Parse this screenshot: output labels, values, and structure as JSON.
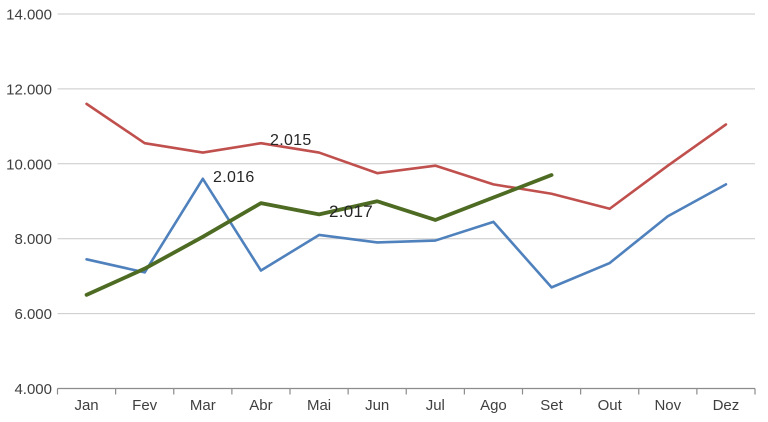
{
  "chart_data": {
    "type": "line",
    "title": "",
    "xlabel": "",
    "ylabel": "",
    "categories": [
      "Jan",
      "Fev",
      "Mar",
      "Abr",
      "Mai",
      "Jun",
      "Jul",
      "Ago",
      "Set",
      "Out",
      "Nov",
      "Dez"
    ],
    "series": [
      {
        "name": "2.015",
        "color": "#C0504D",
        "stroke_width": 2.6,
        "values": [
          11600,
          10550,
          10300,
          10550,
          10300,
          9750,
          9950,
          9450,
          9200,
          8800,
          9950,
          11050
        ]
      },
      {
        "name": "2.016",
        "color": "#4F81BD",
        "stroke_width": 2.6,
        "values": [
          7450,
          7100,
          9600,
          7150,
          8100,
          7900,
          7950,
          8450,
          6700,
          7350,
          8600,
          9450
        ]
      },
      {
        "name": "2.017",
        "color": "#4E6B23",
        "stroke_width": 3.8,
        "values": [
          6500,
          7200,
          8050,
          8950,
          8650,
          9000,
          8500,
          9100,
          9700,
          null,
          null,
          null
        ]
      }
    ],
    "ylim": [
      4000,
      14000
    ],
    "ytick_step": 2000,
    "yticks": [
      {
        "value": 4000,
        "label": "4.000"
      },
      {
        "value": 6000,
        "label": "6.000"
      },
      {
        "value": 8000,
        "label": "8.000"
      },
      {
        "value": 10000,
        "label": "10.000"
      },
      {
        "value": 12000,
        "label": "12.000"
      },
      {
        "value": 14000,
        "label": "14.000"
      }
    ],
    "grid": true,
    "legend_position": "none",
    "annotations": [
      {
        "text": "2.015",
        "series": "2.015",
        "near_month": "Abr"
      },
      {
        "text": "2.016",
        "series": "2.016",
        "near_month": "Mar"
      },
      {
        "text": "2.017",
        "series": "2.017",
        "near_month": "Mai"
      }
    ],
    "colors": {
      "gridline": "#C9C9C9",
      "axis_line": "#8C8C8C",
      "axis_text": "#3F3F3F",
      "annotation_text": "#262626",
      "background": "#FFFFFF"
    }
  }
}
